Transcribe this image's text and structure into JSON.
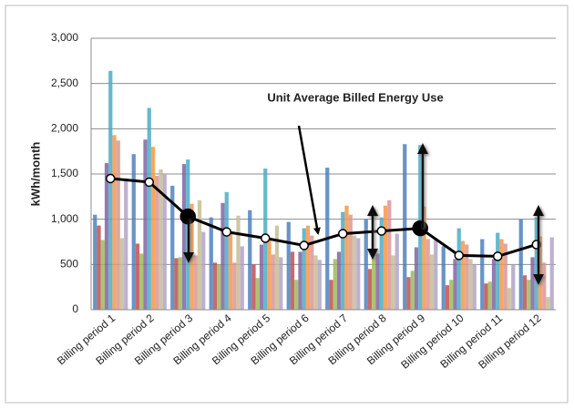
{
  "chart_data": {
    "type": "bar",
    "categories": [
      "Billing period 1",
      "Billing period 2",
      "Billing period 3",
      "Billing period 4",
      "Billing period 5",
      "Billing period 6",
      "Billing period 7",
      "Billing period 8",
      "Billing period 9",
      "Billing period 10",
      "Billing period 11",
      "Billing period 12"
    ],
    "series": [
      {
        "color": "#4F81BD",
        "values": [
          1050,
          1720,
          1370,
          1020,
          1100,
          970,
          1570,
          1000,
          1830,
          700,
          780,
          1000
        ]
      },
      {
        "color": "#C0504D",
        "values": [
          930,
          730,
          570,
          520,
          500,
          640,
          330,
          450,
          360,
          270,
          290,
          380
        ]
      },
      {
        "color": "#9BBB59",
        "values": [
          770,
          620,
          580,
          500,
          350,
          330,
          560,
          580,
          430,
          330,
          310,
          330
        ]
      },
      {
        "color": "#8064A2",
        "values": [
          1620,
          1880,
          1610,
          1180,
          720,
          640,
          640,
          620,
          690,
          560,
          560,
          580
        ]
      },
      {
        "color": "#4BACC6",
        "values": [
          2640,
          2230,
          1660,
          1300,
          1560,
          900,
          1080,
          1020,
          1820,
          900,
          850,
          1020
        ]
      },
      {
        "color": "#F79646",
        "values": [
          1930,
          1800,
          1170,
          840,
          790,
          930,
          1150,
          1150,
          1140,
          760,
          780,
          810
        ]
      },
      {
        "color": "#DA9694",
        "values": [
          1870,
          1480,
          600,
          520,
          610,
          820,
          1050,
          1210,
          780,
          720,
          730,
          520
        ]
      },
      {
        "color": "#C4BD97",
        "values": [
          790,
          1550,
          1210,
          1040,
          930,
          600,
          820,
          600,
          610,
          560,
          240,
          140
        ]
      },
      {
        "color": "#B3A2C7",
        "values": [
          1450,
          1500,
          860,
          700,
          580,
          550,
          790,
          840,
          780,
          500,
          500,
          800
        ]
      }
    ],
    "average": {
      "name": "Unit Average Billed Energy Use",
      "color": "#000000",
      "values": [
        1450,
        1410,
        1030,
        860,
        790,
        710,
        840,
        870,
        900,
        600,
        590,
        720
      ],
      "filled_points": [
        2,
        8
      ]
    },
    "y_label": "kWh/month",
    "ylim": [
      0,
      3000
    ],
    "yticks": [
      0,
      {
        "value": 500,
        "label": "500"
      },
      {
        "value": 1000,
        "label": "1,000"
      },
      {
        "value": 1500,
        "label": "1,500"
      },
      {
        "value": 2000,
        "label": "2,000"
      },
      {
        "value": 2500,
        "label": "2,500"
      },
      {
        "value": 3000,
        "label": "3,000"
      }
    ],
    "grid": true
  }
}
